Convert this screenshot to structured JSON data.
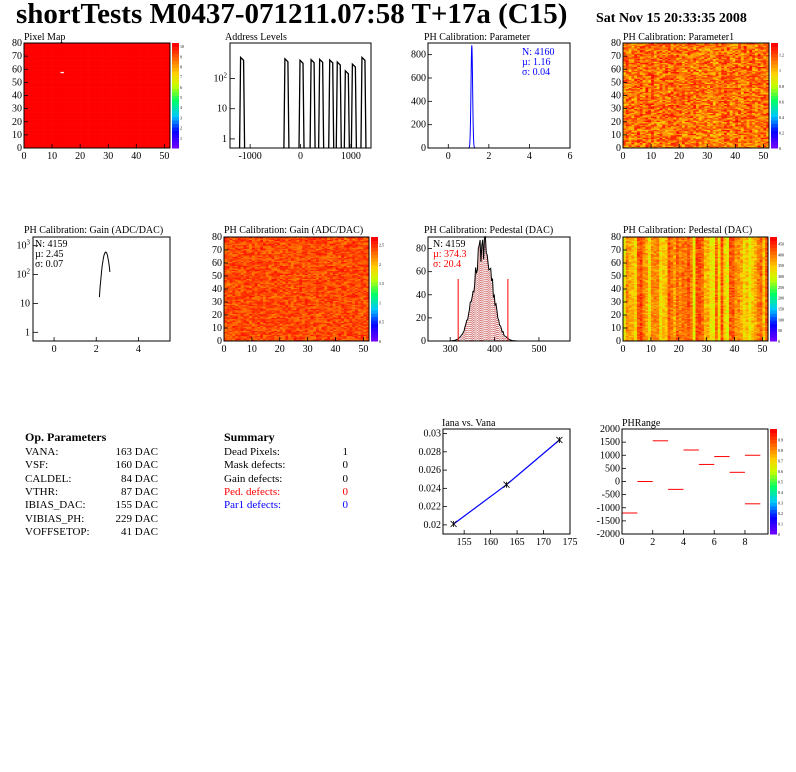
{
  "header": {
    "title": "shortTests M0437-071211.07:58 T+17a (C15)",
    "date": "Sat Nov 15 20:33:35 2008"
  },
  "colors": {
    "text_red": "#ff0000",
    "text_blue": "#0000ff",
    "map_red": "#ff0000",
    "hist_blue": "#0000ff"
  },
  "op_params": {
    "title": "Op. Parameters",
    "rows": [
      {
        "name": "VANA:",
        "value": "163 DAC"
      },
      {
        "name": "VSF:",
        "value": "160 DAC"
      },
      {
        "name": "CALDEL:",
        "value": "84 DAC"
      },
      {
        "name": "VTHR:",
        "value": "87 DAC"
      },
      {
        "name": "IBIAS_DAC:",
        "value": "155 DAC"
      },
      {
        "name": "VIBIAS_PH:",
        "value": "229 DAC"
      },
      {
        "name": "VOFFSETOP:",
        "value": "41 DAC"
      }
    ]
  },
  "summary": {
    "title": "Summary",
    "rows": [
      {
        "name": "Dead Pixels:",
        "value": "1",
        "color": "#000000"
      },
      {
        "name": "Mask defects:",
        "value": "0",
        "color": "#000000"
      },
      {
        "name": "Gain defects:",
        "value": "0",
        "color": "#000000"
      },
      {
        "name": "Ped. defects:",
        "value": "0",
        "color": "#ff0000"
      },
      {
        "name": "Par1 defects:",
        "value": "0",
        "color": "#0000ff"
      }
    ]
  },
  "chart_data": [
    {
      "id": "pixel-map",
      "type": "heatmap",
      "title": "Pixel Map",
      "xlim": [
        0,
        52
      ],
      "ylim": [
        0,
        80
      ],
      "xticks": [
        "0",
        "10",
        "20",
        "30",
        "40",
        "50"
      ],
      "yticks": [
        "0",
        "10",
        "20",
        "30",
        "40",
        "50",
        "60",
        "70",
        "80"
      ],
      "zticks": [
        "1",
        "2",
        "3",
        "4",
        "5",
        "6",
        "7",
        "8",
        "9",
        "10"
      ],
      "fill_value": 10,
      "dead_pixels": [
        {
          "x": 13,
          "y": 57
        }
      ]
    },
    {
      "id": "address-levels",
      "type": "bar",
      "title": "Address Levels",
      "log_y": true,
      "xlim": [
        -1400,
        1400
      ],
      "xticks": [
        "-1000",
        "0",
        "1000"
      ],
      "yticks": [
        "1",
        "10",
        "10^2"
      ],
      "peaks": [
        {
          "x": -1150,
          "y": 500
        },
        {
          "x": -270,
          "y": 450
        },
        {
          "x": 30,
          "y": 400
        },
        {
          "x": 250,
          "y": 420
        },
        {
          "x": 420,
          "y": 430
        },
        {
          "x": 620,
          "y": 410
        },
        {
          "x": 770,
          "y": 350
        },
        {
          "x": 930,
          "y": 180
        },
        {
          "x": 1070,
          "y": 300
        },
        {
          "x": 1260,
          "y": 500
        }
      ]
    },
    {
      "id": "ph-calib-parameter",
      "type": "bar",
      "title": "PH Calibration: Parameter",
      "xlim": [
        -1,
        6
      ],
      "ylim": [
        0,
        900
      ],
      "xticks": [
        "0",
        "2",
        "4",
        "6"
      ],
      "yticks": [
        "0",
        "200",
        "400",
        "600",
        "800"
      ],
      "peak": {
        "mean": 1.16,
        "sigma": 0.04,
        "max": 880
      },
      "stats": [
        "N: 4160",
        "µ: 1.16",
        "σ: 0.04"
      ]
    },
    {
      "id": "ph-calib-parameter1",
      "type": "heatmap",
      "title": "PH Calibration: Parameter1",
      "xlim": [
        0,
        52
      ],
      "ylim": [
        0,
        80
      ],
      "xticks": [
        "0",
        "10",
        "20",
        "30",
        "40",
        "50"
      ],
      "yticks": [
        "0",
        "10",
        "20",
        "30",
        "40",
        "50",
        "60",
        "70",
        "80"
      ],
      "zticks": [
        "0",
        "0.2",
        "0.4",
        "0.6",
        "0.8",
        "1",
        "1.2"
      ],
      "zrange": [
        0,
        1.35
      ]
    },
    {
      "id": "ph-calib-gain-hist",
      "type": "bar",
      "title": "PH Calibration: Gain (ADC/DAC)",
      "log_y": true,
      "xlim": [
        -1,
        5.5
      ],
      "xticks": [
        "0",
        "2",
        "4"
      ],
      "yticks": [
        "1",
        "10",
        "10^2",
        "10^3"
      ],
      "peak": {
        "mean": 2.45,
        "sigma": 0.07,
        "max": 600
      },
      "stats": [
        "N: 4159",
        "µ: 2.45",
        "σ: 0.07"
      ]
    },
    {
      "id": "ph-calib-gain-map",
      "type": "heatmap",
      "title": "PH Calibration: Gain (ADC/DAC)",
      "xlim": [
        0,
        52
      ],
      "ylim": [
        0,
        80
      ],
      "xticks": [
        "0",
        "10",
        "20",
        "30",
        "40",
        "50"
      ],
      "yticks": [
        "0",
        "10",
        "20",
        "30",
        "40",
        "50",
        "60",
        "70",
        "80"
      ],
      "zticks": [
        "0",
        "0.5",
        "1",
        "1.5",
        "2",
        "2.5"
      ],
      "zrange": [
        0,
        2.7
      ]
    },
    {
      "id": "ph-calib-pedestal-hist",
      "type": "bar",
      "title": "PH Calibration: Pedestal (DAC)",
      "xlim": [
        250,
        570
      ],
      "ylim": [
        0,
        90
      ],
      "xticks": [
        "300",
        "400",
        "500"
      ],
      "yticks": [
        "0",
        "20",
        "40",
        "60",
        "80"
      ],
      "peak": {
        "mean": 374.3,
        "sigma": 20.4,
        "max": 82
      },
      "cut_lines": [
        318,
        430
      ],
      "stats": [
        "N: 4159",
        "µ: 374.3",
        "σ: 20.4"
      ]
    },
    {
      "id": "ph-calib-pedestal-map",
      "type": "heatmap",
      "title": "PH Calibration: Pedestal (DAC)",
      "xlim": [
        0,
        52
      ],
      "ylim": [
        0,
        80
      ],
      "xticks": [
        "0",
        "10",
        "20",
        "30",
        "40",
        "50"
      ],
      "yticks": [
        "0",
        "10",
        "20",
        "30",
        "40",
        "50",
        "60",
        "70",
        "80"
      ],
      "zticks": [
        "0",
        "50",
        "100",
        "150",
        "200",
        "250",
        "300",
        "350",
        "400",
        "450"
      ],
      "zrange": [
        0,
        480
      ]
    },
    {
      "id": "iana-vs-vana",
      "type": "line",
      "title": "Iana vs. Vana",
      "xlim": [
        151,
        175
      ],
      "ylim": [
        0.019,
        0.0305
      ],
      "xticks": [
        "155",
        "160",
        "165",
        "170",
        "175"
      ],
      "yticks": [
        "0.02",
        "0.022",
        "0.024",
        "0.026",
        "0.028",
        "0.03"
      ],
      "x": [
        153,
        163,
        173
      ],
      "y": [
        0.0201,
        0.0244,
        0.0293
      ]
    },
    {
      "id": "phrange",
      "type": "scatter",
      "title": "PHRange",
      "xlim": [
        0,
        9.5
      ],
      "ylim": [
        -2000,
        2000
      ],
      "xticks": [
        "0",
        "2",
        "4",
        "6",
        "8"
      ],
      "yticks": [
        "2000",
        "1500",
        "1000",
        "500",
        "0",
        "-500",
        "-1000",
        "-1500",
        "-2000"
      ],
      "zticks": [
        "0",
        "0.1",
        "0.2",
        "0.3",
        "0.4",
        "0.5",
        "0.6",
        "0.7",
        "0.8",
        "0.9"
      ],
      "segments": [
        {
          "x": 0,
          "y": -1200
        },
        {
          "x": 1,
          "y": 0
        },
        {
          "x": 2,
          "y": 1550
        },
        {
          "x": 3,
          "y": -300
        },
        {
          "x": 4,
          "y": 1200
        },
        {
          "x": 5,
          "y": 650
        },
        {
          "x": 6,
          "y": 950
        },
        {
          "x": 7,
          "y": 350
        },
        {
          "x": 8,
          "y": 1000
        },
        {
          "x": 8,
          "y": -850
        }
      ]
    }
  ]
}
